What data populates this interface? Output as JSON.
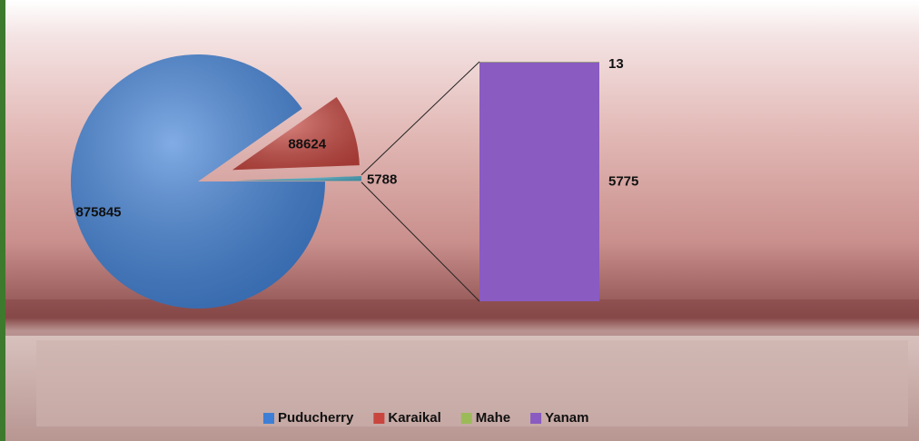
{
  "chart_data": {
    "type": "pie-of-bar",
    "pie": {
      "categories": [
        "Puducherry",
        "Karaikal",
        null
      ],
      "colors": [
        "#3d7fd6",
        "#c9463f",
        "#4bacc6"
      ],
      "values": [
        875845,
        88624,
        5788
      ]
    },
    "stack": {
      "categories": [
        "Mahe",
        "Yanam"
      ],
      "colors": [
        "#9bbb59",
        "#8a5bc0"
      ],
      "values": [
        13,
        5775
      ]
    }
  }
}
